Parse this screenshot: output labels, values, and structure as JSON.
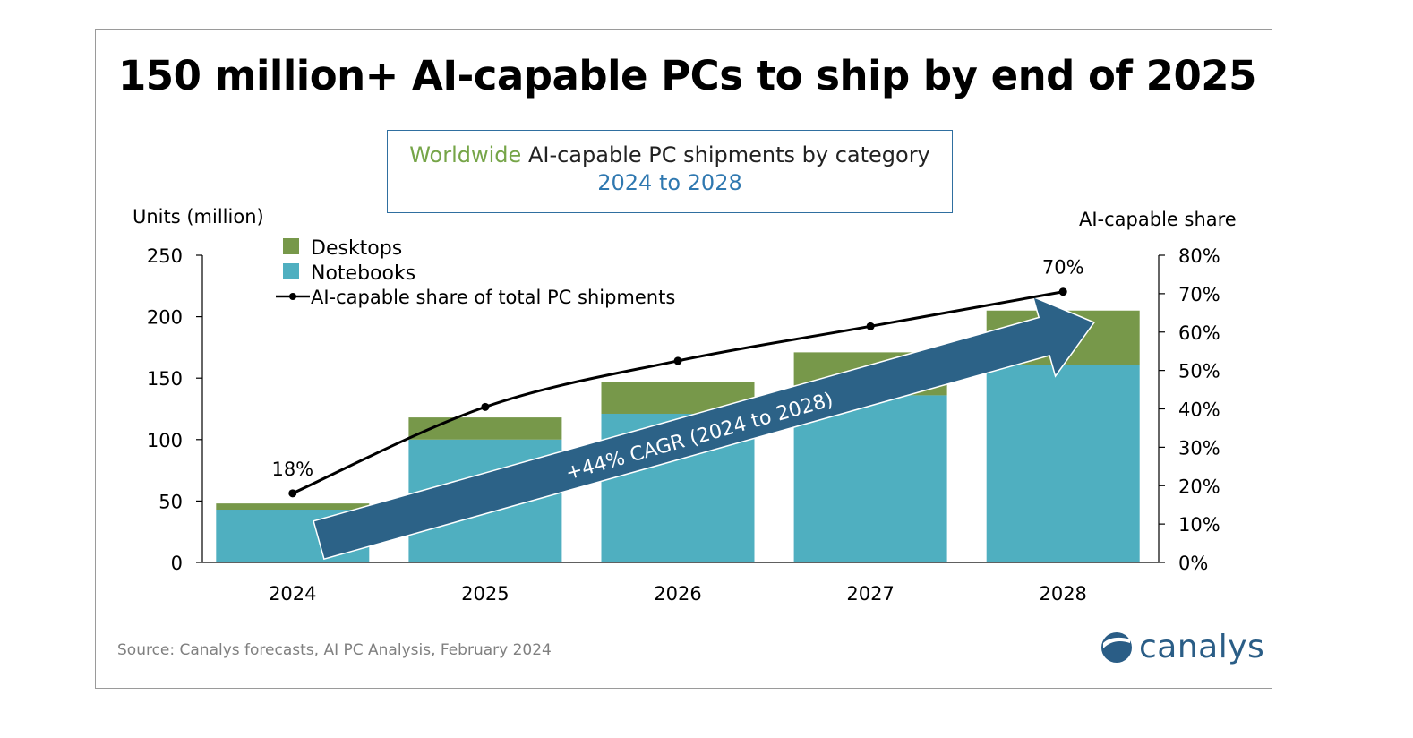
{
  "headline": "150 million+ AI-capable PCs to ship by end of 2025",
  "subtitle": {
    "word1": "Worldwide",
    "rest": "AI-capable  PC shipments by category",
    "line2": "2024 to 2028"
  },
  "source": "Source:  Canalys forecasts, AI PC Analysis, February 2024",
  "logo": {
    "text": "canalys",
    "icon": "canalys-logo-icon"
  },
  "colors": {
    "notebooks": "#4fafc0",
    "desktops": "#77984a",
    "arrow": "#2c6287",
    "line": "#000000"
  },
  "chart_data": {
    "type": "bar",
    "stacked": true,
    "categories": [
      "2024",
      "2025",
      "2026",
      "2027",
      "2028"
    ],
    "series": [
      {
        "name": "Notebooks",
        "values": [
          43,
          100,
          121,
          136,
          161
        ]
      },
      {
        "name": "Desktops",
        "values": [
          5,
          18,
          26,
          35,
          44
        ]
      }
    ],
    "line_series": {
      "name": "AI-capable share of total PC shipments",
      "values": [
        18,
        40.5,
        52.5,
        61.5,
        70.5
      ],
      "axis": "right",
      "data_labels": {
        "2024": "18%",
        "2028": "70%"
      }
    },
    "ylabel": "Units (million)",
    "y2label": "AI-capable share",
    "ylim": [
      0,
      250
    ],
    "yticks": [
      "0",
      "50",
      "100",
      "150",
      "200",
      "250"
    ],
    "y2lim": [
      0,
      80
    ],
    "y2ticks": [
      "0%",
      "10%",
      "20%",
      "30%",
      "40%",
      "50%",
      "60%",
      "70%",
      "80%"
    ],
    "legend": [
      "Desktops",
      "Notebooks",
      "AI-capable share of total PC shipments"
    ],
    "annotation": "+44% CAGR (2024 to 2028)"
  }
}
